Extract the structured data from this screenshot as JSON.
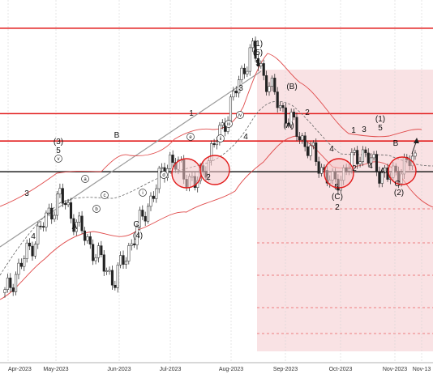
{
  "chart_data": {
    "type": "candlestick",
    "instrument_note": "",
    "x_ticks": [
      "Apr-2023",
      "May-2023",
      "Jun-2023",
      "Jul-2023",
      "Aug-2023",
      "Sep-2023",
      "Oct-2023",
      "Nov-2023",
      "Nov-13"
    ],
    "price_series": [
      [
        "Apr-2023",
        0.18
      ],
      [
        "Apr-mid",
        0.33
      ],
      [
        "May-2023",
        0.47
      ],
      [
        "May-mid",
        0.34
      ],
      [
        "Jun-2023",
        0.22
      ],
      [
        "Jun-mid",
        0.4
      ],
      [
        "Jul-2023",
        0.58
      ],
      [
        "Jul-mid",
        0.5
      ],
      [
        "Aug-2023",
        0.68
      ],
      [
        "Aug-mid",
        0.9
      ],
      [
        "Sep-2023",
        0.74
      ],
      [
        "Sep-mid",
        0.62
      ],
      [
        "Oct-2023",
        0.5
      ],
      [
        "Oct-mid",
        0.6
      ],
      [
        "Nov-2023",
        0.52
      ],
      [
        "Nov-13",
        0.58
      ]
    ],
    "horizontal_lines": [
      {
        "label": "",
        "color": "#e21b1b",
        "level": 0.96
      },
      {
        "label": "",
        "color": "#e21b1b",
        "level": 0.71
      },
      {
        "label": "",
        "color": "#e21b1b",
        "level": 0.63
      },
      {
        "label": "",
        "color": "#222222",
        "level": 0.54
      }
    ],
    "wave_labels": [
      {
        "text": "(1)",
        "x": "Aug-mid",
        "y": "top"
      },
      {
        "text": "(5)",
        "x": "Aug-mid",
        "y": "top"
      },
      {
        "text": "5",
        "x": "Aug-mid",
        "y": "top"
      },
      {
        "text": "3",
        "x": "Aug-early",
        "y": "upper"
      },
      {
        "text": "(3)",
        "x": "May-2023",
        "y": "upper"
      },
      {
        "text": "5",
        "x": "May-2023",
        "y": "upper"
      },
      {
        "text": "3",
        "x": "Apr-mid",
        "y": "mid"
      },
      {
        "text": "4",
        "x": "Apr-mid",
        "y": "mid"
      },
      {
        "text": "A",
        "x": "May-mid",
        "y": "low"
      },
      {
        "text": "B",
        "x": "May-late",
        "y": "upper"
      },
      {
        "text": "C",
        "x": "Jun-mid",
        "y": "low"
      },
      {
        "text": "(4)",
        "x": "Jun-mid",
        "y": "low"
      },
      {
        "text": "1",
        "x": "Jul-2023",
        "y": "upper"
      },
      {
        "text": "2",
        "x": "Jul-mid",
        "y": "mid"
      },
      {
        "text": "4",
        "x": "Aug-2023",
        "y": "mid"
      },
      {
        "text": "(B)",
        "x": "Sep-early",
        "y": "upper"
      },
      {
        "text": "(A)",
        "x": "Sep-early",
        "y": "upper"
      },
      {
        "text": "2",
        "x": "Sep-2023",
        "y": "upper"
      },
      {
        "text": "1",
        "x": "Oct-mid",
        "y": "mid"
      },
      {
        "text": "3",
        "x": "Oct-mid",
        "y": "mid"
      },
      {
        "text": "4",
        "x": "Oct-2023",
        "y": "mid"
      },
      {
        "text": "2",
        "x": "Oct-2023",
        "y": "mid"
      },
      {
        "text": "4",
        "x": "Oct-late",
        "y": "mid"
      },
      {
        "text": "(1)",
        "x": "Oct-late",
        "y": "upper"
      },
      {
        "text": "5",
        "x": "Oct-late",
        "y": "upper"
      },
      {
        "text": "B",
        "x": "Nov-2023",
        "y": "mid"
      },
      {
        "text": "A",
        "x": "Nov-2023",
        "y": "mid"
      },
      {
        "text": "C",
        "x": "Nov-2023",
        "y": "low"
      },
      {
        "text": "(2)",
        "x": "Nov-2023",
        "y": "low"
      },
      {
        "text": "5",
        "x": "Oct-2023",
        "y": "low"
      },
      {
        "text": "(C)",
        "x": "Oct-2023",
        "y": "low"
      },
      {
        "text": "2",
        "x": "Oct-2023",
        "y": "low"
      }
    ],
    "circled_letters": [
      "a",
      "b",
      "c",
      "d",
      "e",
      "i",
      "ii",
      "iii",
      "iv",
      "v"
    ],
    "colors": {
      "bull_candle": "#ffffff",
      "bear_candle": "#222222",
      "wick": "#222222",
      "resistance": "#e21b1b",
      "support": "#222222",
      "bollinger": "#e04c4c",
      "mid_band": "#666666",
      "projection_zone": "#f6d7d9",
      "trendline": "#999999"
    },
    "grid": true
  }
}
